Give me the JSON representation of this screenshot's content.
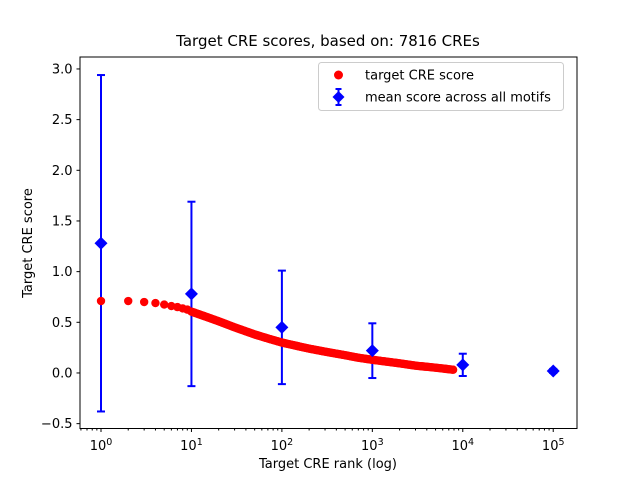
{
  "figure": {
    "background": "#ffffff",
    "accent_red": "#ff0000",
    "accent_blue": "#0000ff",
    "legend_border": "#cccccc"
  },
  "chart_data": {
    "type": "scatter",
    "title": "Target CRE scores, based on: 7816 CREs",
    "xlabel": "Target CRE rank (log)",
    "ylabel": "Target CRE score",
    "x_scale": "log10",
    "xlim_log10": [
      -0.2322,
      5.2629
    ],
    "ylim": [
      -0.548,
      3.118
    ],
    "grid": false,
    "legend_position": "upper right",
    "x_tick_base": "10",
    "x_tick_exponents": [
      "0",
      "1",
      "2",
      "3",
      "4",
      "5"
    ],
    "x_major_tick_values": [
      1,
      10,
      100,
      1000,
      10000,
      100000
    ],
    "y_tick_labels": [
      "−0.5",
      "0.0",
      "0.5",
      "1.0",
      "1.5",
      "2.0",
      "2.5",
      "3.0"
    ],
    "y_tick_values": [
      -0.5,
      0.0,
      0.5,
      1.0,
      1.5,
      2.0,
      2.5,
      3.0
    ],
    "series": [
      {
        "name": "target CRE score",
        "type": "scatter",
        "marker": "circle",
        "color": "#ff0000",
        "points_depicted": 7816,
        "anchors_rank_score": [
          [
            1,
            0.71
          ],
          [
            2,
            0.71
          ],
          [
            3,
            0.7
          ],
          [
            4,
            0.69
          ],
          [
            5,
            0.675
          ],
          [
            6,
            0.66
          ],
          [
            7,
            0.65
          ],
          [
            9,
            0.625
          ],
          [
            10,
            0.605
          ],
          [
            15,
            0.55
          ],
          [
            20,
            0.51
          ],
          [
            30,
            0.45
          ],
          [
            50,
            0.38
          ],
          [
            70,
            0.34
          ],
          [
            100,
            0.3
          ],
          [
            158,
            0.26
          ],
          [
            200,
            0.24
          ],
          [
            300,
            0.21
          ],
          [
            500,
            0.175
          ],
          [
            700,
            0.15
          ],
          [
            1000,
            0.13
          ],
          [
            2000,
            0.095
          ],
          [
            3000,
            0.072
          ],
          [
            5000,
            0.052
          ],
          [
            7816,
            0.032
          ]
        ]
      },
      {
        "name": "mean score across all motifs",
        "type": "errorbar",
        "marker": "diamond",
        "color": "#0000ff",
        "x": [
          1,
          10,
          100,
          1000,
          10000,
          100000
        ],
        "y": [
          1.28,
          0.78,
          0.45,
          0.22,
          0.08,
          0.02
        ],
        "yerr": [
          1.66,
          0.91,
          0.56,
          0.27,
          0.11,
          0.02
        ]
      }
    ],
    "legend": {
      "items": [
        {
          "label": "target CRE score",
          "marker": "circle",
          "color": "#ff0000"
        },
        {
          "label": "mean score across all motifs",
          "marker": "diamond_errorbar",
          "color": "#0000ff"
        }
      ]
    }
  }
}
